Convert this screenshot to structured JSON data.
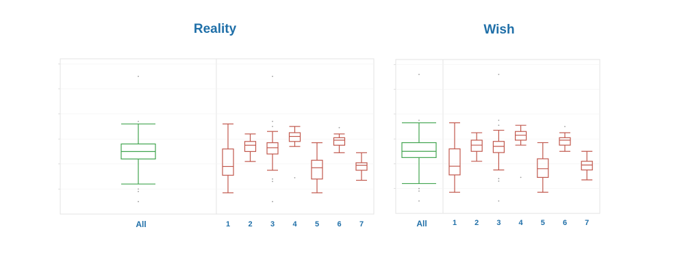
{
  "chart_data": [
    {
      "type": "boxplot",
      "title": "Reality",
      "color_all": "#3fa34d",
      "color_group": "#c0564b",
      "label_color": "#1f6fa8",
      "ylim": [
        0,
        6.2
      ],
      "grid": true,
      "overall": {
        "category": "All",
        "min": 1.2,
        "q1": 2.2,
        "median": 2.5,
        "q3": 2.8,
        "max": 3.6,
        "outliers": [
          0.5,
          0.9,
          1.0,
          3.7,
          5.5
        ]
      },
      "groups": [
        {
          "category": "1",
          "min": 0.85,
          "q1": 1.55,
          "median": 1.9,
          "q3": 2.6,
          "max": 3.6,
          "outliers": []
        },
        {
          "category": "2",
          "min": 2.1,
          "q1": 2.5,
          "median": 2.75,
          "q3": 2.9,
          "max": 3.2,
          "outliers": []
        },
        {
          "category": "3",
          "min": 1.75,
          "q1": 2.4,
          "median": 2.65,
          "q3": 2.85,
          "max": 3.3,
          "outliers": [
            0.5,
            1.3,
            1.4,
            3.5,
            3.7,
            5.5
          ]
        },
        {
          "category": "4",
          "min": 2.7,
          "q1": 2.9,
          "median": 3.1,
          "q3": 3.25,
          "max": 3.5,
          "outliers": [
            1.45
          ]
        },
        {
          "category": "5",
          "min": 0.85,
          "q1": 1.4,
          "median": 1.85,
          "q3": 2.15,
          "max": 2.85,
          "outliers": []
        },
        {
          "category": "6",
          "min": 2.45,
          "q1": 2.75,
          "median": 2.95,
          "q3": 3.05,
          "max": 3.2,
          "outliers": [
            3.45
          ]
        },
        {
          "category": "7",
          "min": 1.35,
          "q1": 1.75,
          "median": 1.95,
          "q3": 2.05,
          "max": 2.45,
          "outliers": []
        }
      ]
    },
    {
      "type": "boxplot",
      "title": "Wish",
      "color_all": "#3fa34d",
      "color_group": "#c0564b",
      "label_color": "#1f6fa8",
      "ylim": [
        0,
        6.2
      ],
      "grid": true,
      "overall": {
        "category": "All",
        "min": 1.2,
        "q1": 2.25,
        "median": 2.5,
        "q3": 2.85,
        "max": 3.65,
        "outliers": [
          0.5,
          0.9,
          1.0,
          3.75,
          5.6
        ]
      },
      "groups": [
        {
          "category": "1",
          "min": 0.85,
          "q1": 1.55,
          "median": 1.9,
          "q3": 2.6,
          "max": 3.65,
          "outliers": []
        },
        {
          "category": "2",
          "min": 2.1,
          "q1": 2.5,
          "median": 2.75,
          "q3": 2.95,
          "max": 3.25,
          "outliers": []
        },
        {
          "category": "3",
          "min": 1.75,
          "q1": 2.45,
          "median": 2.7,
          "q3": 2.9,
          "max": 3.35,
          "outliers": [
            0.5,
            1.3,
            1.4,
            3.55,
            3.75,
            5.6
          ]
        },
        {
          "category": "4",
          "min": 2.75,
          "q1": 2.95,
          "median": 3.15,
          "q3": 3.3,
          "max": 3.55,
          "outliers": [
            1.45
          ]
        },
        {
          "category": "5",
          "min": 0.85,
          "q1": 1.45,
          "median": 1.8,
          "q3": 2.2,
          "max": 2.85,
          "outliers": []
        },
        {
          "category": "6",
          "min": 2.5,
          "q1": 2.75,
          "median": 2.95,
          "q3": 3.05,
          "max": 3.25,
          "outliers": [
            3.5
          ]
        },
        {
          "category": "7",
          "min": 1.35,
          "q1": 1.75,
          "median": 1.95,
          "q3": 2.1,
          "max": 2.5,
          "outliers": []
        }
      ]
    }
  ]
}
